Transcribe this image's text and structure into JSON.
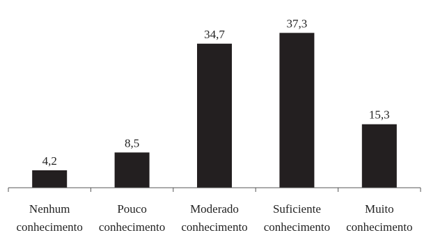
{
  "chart_data": {
    "type": "bar",
    "title": "",
    "xlabel": "",
    "ylabel": "",
    "categories": [
      [
        "Nenhum",
        "conhecimento"
      ],
      [
        "Pouco",
        "conhecimento"
      ],
      [
        "Moderado",
        "conhecimento"
      ],
      [
        "Suficiente",
        "conhecimento"
      ],
      [
        "Muito",
        "conhecimento"
      ]
    ],
    "values": [
      4.2,
      8.5,
      34.7,
      37.3,
      15.3
    ],
    "value_labels": [
      "4,2",
      "8,5",
      "34,7",
      "37,3",
      "15,3"
    ],
    "ylim": [
      0,
      40
    ],
    "grid": false,
    "legend": "none",
    "bar_color": "#231f20",
    "axis_color": "#555555"
  }
}
